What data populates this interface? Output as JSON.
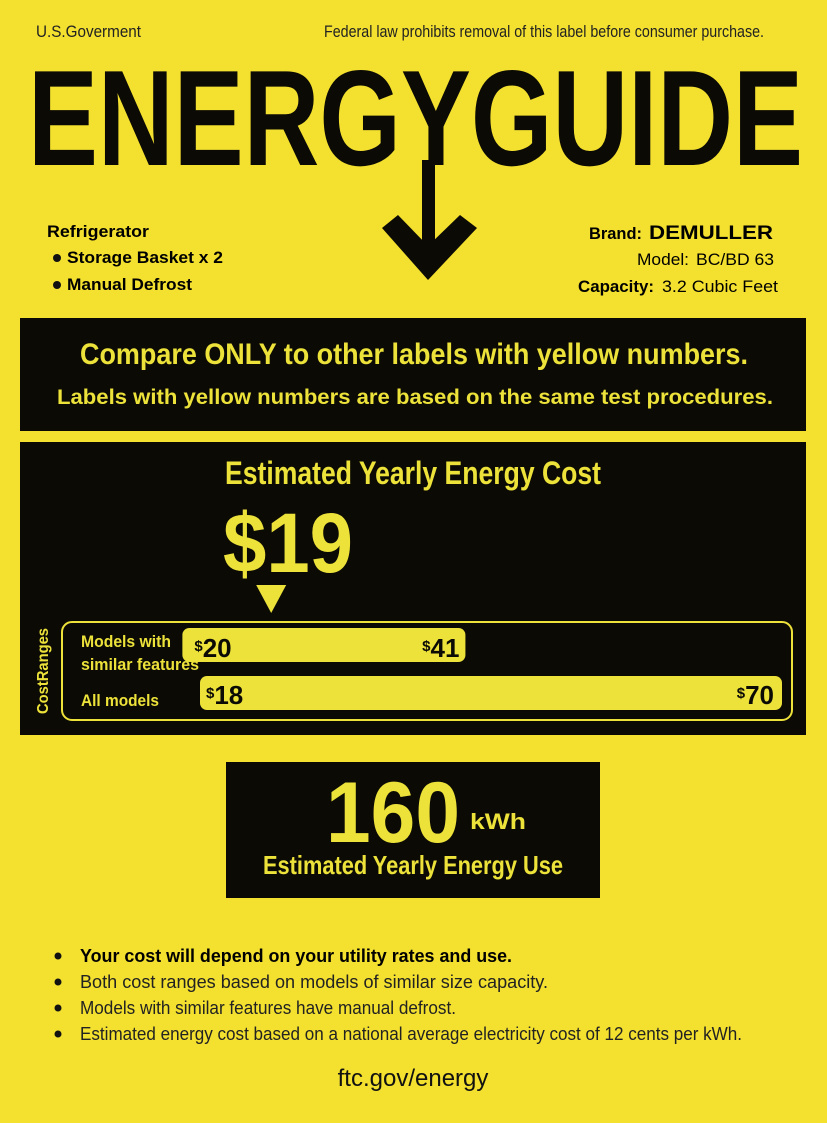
{
  "header": {
    "issuer": "U.S.Goverment",
    "notice": "Federal law prohibits removal of this label before consumer purchase."
  },
  "title": "ENERGYGUIDE",
  "appliance": {
    "type": "Refrigerator",
    "features": [
      "Storage Basket x 2",
      "Manual Defrost"
    ]
  },
  "specs": {
    "brand_label": "Brand:",
    "brand": "DEMULLER",
    "model_label": "Model:",
    "model": "BC/BD 63",
    "capacity_label": "Capacity:",
    "capacity": "3.2 Cubic Feet"
  },
  "compare": {
    "headline": "Compare ONLY to other labels with yellow numbers.",
    "subline": "Labels with yellow numbers are based on the same test procedures."
  },
  "cost": {
    "heading": "Estimated Yearly Energy Cost",
    "value": "$19",
    "value_number": 19,
    "ranges_label": "CostRanges",
    "similar_label_1": "Models with",
    "similar_label_2": "similar features",
    "similar_min": "20",
    "similar_max": "41",
    "all_label": "All models",
    "all_min": "18",
    "all_max": "70",
    "currency": "$"
  },
  "energy_use": {
    "value": "160",
    "unit": "kWh",
    "label": "Estimated Yearly Energy Use"
  },
  "notes": [
    "Your cost will depend on your utility rates and use.",
    "Both cost ranges based on models of similar size capacity.",
    "Models with similar features have manual defrost.",
    "Estimated energy cost based on a national average electricity cost of 12 cents per kWh."
  ],
  "footer": "ftc.gov/energy",
  "colors": {
    "background": "#f3e02f",
    "panel": "#0c0a05",
    "highlight": "#ece23a"
  }
}
